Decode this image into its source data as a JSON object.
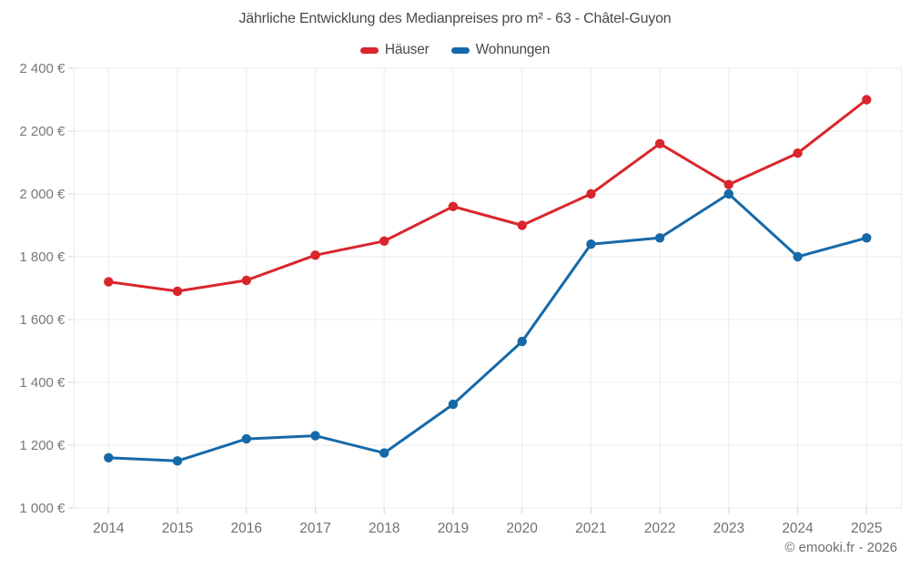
{
  "chart": {
    "title": "Jährliche Entwicklung des Medianpreises pro m² - 63 - Châtel-Guyon",
    "copyright": "© emooki.fr - 2026"
  },
  "chart_data": {
    "type": "line",
    "title": "Jährliche Entwicklung des Medianpreises pro m² - 63 - Châtel-Guyon",
    "categories": [
      "2014",
      "2015",
      "2016",
      "2017",
      "2018",
      "2019",
      "2020",
      "2021",
      "2022",
      "2023",
      "2024",
      "2025"
    ],
    "series": [
      {
        "name": "Häuser",
        "color": "#d9262c",
        "values": [
          1720,
          1690,
          1725,
          1805,
          1850,
          1960,
          1900,
          2000,
          2160,
          2030,
          2130,
          2300
        ]
      },
      {
        "name": "Wohnungen",
        "color": "#1669a8",
        "values": [
          1160,
          1150,
          1220,
          1230,
          1175,
          1330,
          1530,
          1840,
          1860,
          2000,
          1800,
          1860
        ]
      }
    ],
    "ylim": [
      1000,
      2400
    ],
    "yticks": [
      {
        "value": 1000,
        "label": "1 000 €"
      },
      {
        "value": 1200,
        "label": "1 200 €"
      },
      {
        "value": 1400,
        "label": "1 400 €"
      },
      {
        "value": 1600,
        "label": "1 600 €"
      },
      {
        "value": 1800,
        "label": "1 800 €"
      },
      {
        "value": 2000,
        "label": "2 000 €"
      },
      {
        "value": 2200,
        "label": "2 200 €"
      },
      {
        "value": 2400,
        "label": "2 400 €"
      }
    ],
    "xlabel": "",
    "ylabel": "",
    "grid": true,
    "legend_position": "top",
    "marker": "circle"
  }
}
